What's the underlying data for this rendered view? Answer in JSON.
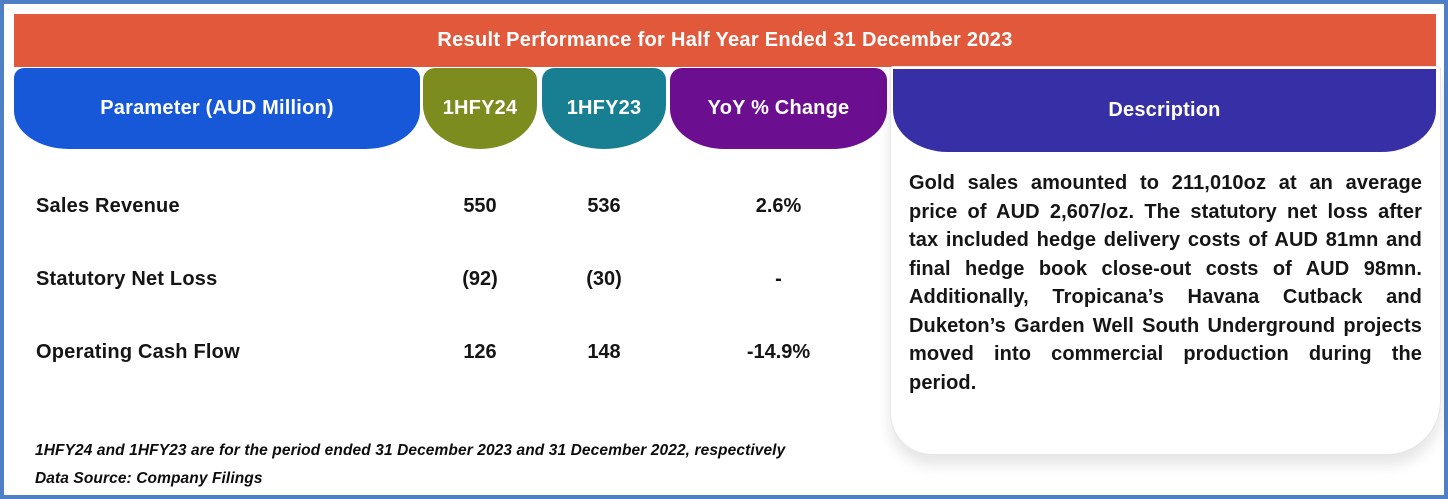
{
  "title": "Result Performance for Half Year Ended 31 December 2023",
  "columns": {
    "parameter": "Parameter (AUD Million)",
    "hfy24": "1HFY24",
    "hfy23": "1HFY23",
    "yoy": "YoY % Change",
    "description": "Description"
  },
  "rows": [
    {
      "parameter": "Sales Revenue",
      "hfy24": "550",
      "hfy23": "536",
      "yoy": "2.6%"
    },
    {
      "parameter": "Statutory Net Loss",
      "hfy24": "(92)",
      "hfy23": "(30)",
      "yoy": "-"
    },
    {
      "parameter": "Operating Cash Flow",
      "hfy24": "126",
      "hfy23": "148",
      "yoy": "-14.9%"
    }
  ],
  "description_text": "Gold sales amounted to 211,010oz at an average price of AUD 2,607/oz. The statutory net loss after tax included hedge delivery costs of AUD 81mn and final hedge book close-out costs of AUD 98mn. Additionally, Tropicana’s Havana Cutback and Duketon’s Garden Well South Underground projects moved into commercial production during the period.",
  "footnotes": [
    "1HFY24 and 1HFY23 are for the period ended 31 December 2023 and 31 December 2022, respectively",
    "Data Source: Company Filings"
  ],
  "colors": {
    "border": "#4F80C6",
    "title_bg": "#E2583B",
    "parameter_bg": "#1658D8",
    "hfy24_bg": "#7D8C1E",
    "hfy23_bg": "#187F92",
    "yoy_bg": "#6C0E90",
    "description_bg": "#362FA6",
    "header_text": "#FFFFFF",
    "body_text": "#151515"
  },
  "chart_data": {
    "type": "table",
    "title": "Result Performance for Half Year Ended 31 December 2023",
    "columns": [
      "Parameter (AUD Million)",
      "1HFY24",
      "1HFY23",
      "YoY % Change"
    ],
    "rows": [
      {
        "parameter": "Sales Revenue",
        "1HFY24": 550,
        "1HFY23": 536,
        "yoy_pct_change": 2.6
      },
      {
        "parameter": "Statutory Net Loss",
        "1HFY24": -92,
        "1HFY23": -30,
        "yoy_pct_change": null
      },
      {
        "parameter": "Operating Cash Flow",
        "1HFY24": 126,
        "1HFY23": 148,
        "yoy_pct_change": -14.9
      }
    ],
    "notes": [
      "1HFY24 and 1HFY23 are for the period ended 31 December 2023 and 31 December 2022, respectively",
      "Data Source: Company Filings"
    ],
    "units": "AUD Million"
  }
}
